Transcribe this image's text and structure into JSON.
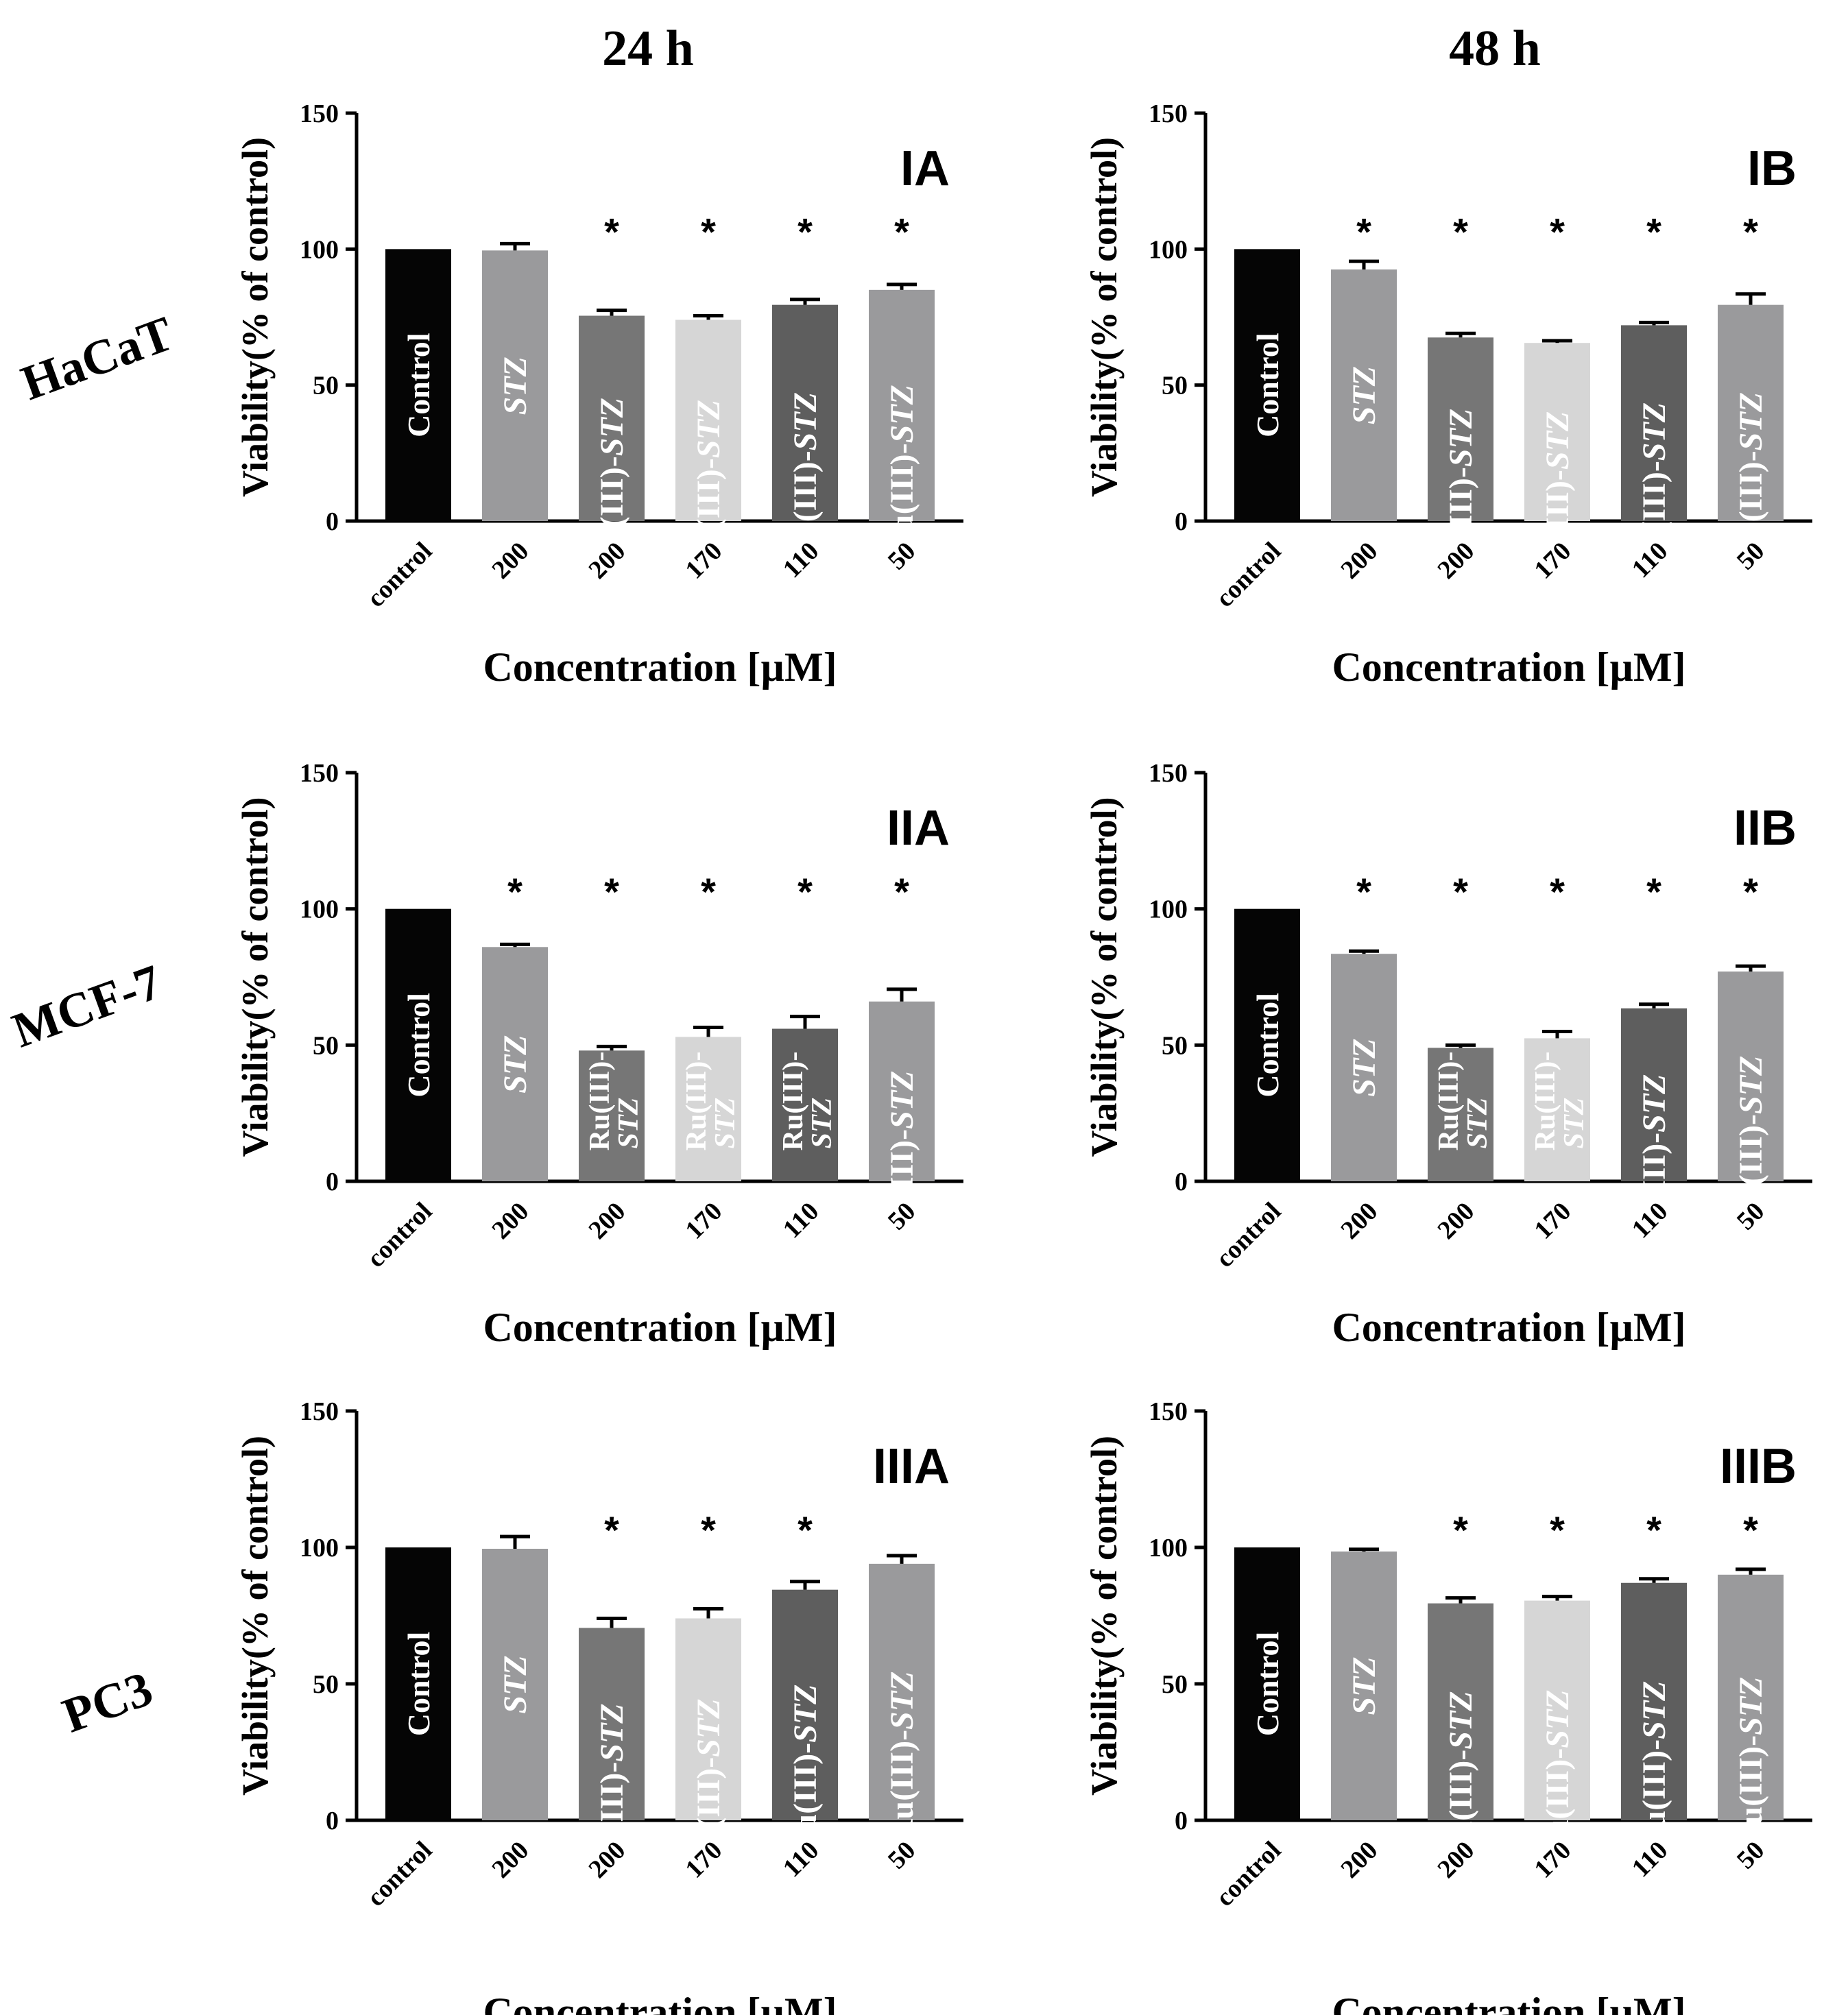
{
  "figure": {
    "column_titles": [
      "24 h",
      "48 h"
    ],
    "row_labels": [
      "HaCaT",
      "MCF-7",
      "PC3"
    ],
    "colors": {
      "axis": "#000000",
      "bar_fill": [
        "#050505",
        "#9a9a9c",
        "#767676",
        "#d6d6d6",
        "#5e5e5e",
        "#9a9a9c"
      ],
      "bar_label": "#ffffff",
      "errorbar": "#000000"
    }
  },
  "chart_data": [
    {
      "id": "IA",
      "type": "bar",
      "panel_label": "IA",
      "column": "24 h",
      "row": "HaCaT",
      "xlabel": "Concentration [µM]",
      "ylabel": "Viability(% of control)",
      "ylim": [
        0,
        150
      ],
      "yticks": [
        "0",
        "50",
        "100",
        "150"
      ],
      "categories": [
        "control",
        "200",
        "200",
        "170",
        "110",
        "50"
      ],
      "bar_labels": [
        "Control",
        "STZ",
        "Ru(III)-STZ",
        "Ru(III)-STZ",
        "Ru(III)-STZ",
        "Ru(III)-STZ"
      ],
      "values": [
        100,
        99.5,
        75.5,
        74,
        79.5,
        85
      ],
      "errors": [
        0,
        2.5,
        2,
        1.5,
        2,
        2
      ],
      "significance": [
        "",
        "",
        "*",
        "*",
        "*",
        "*"
      ]
    },
    {
      "id": "IB",
      "type": "bar",
      "panel_label": "IB",
      "column": "48 h",
      "row": "HaCaT",
      "xlabel": "Concentration [µM]",
      "ylabel": "Viability(% of control)",
      "ylim": [
        0,
        150
      ],
      "yticks": [
        "0",
        "50",
        "100",
        "150"
      ],
      "categories": [
        "control",
        "200",
        "200",
        "170",
        "110",
        "50"
      ],
      "bar_labels": [
        "Control",
        "STZ",
        "Ru(III)-STZ",
        "Ru(III)-STZ",
        "Ru(III)-STZ",
        "Ru(III)-STZ"
      ],
      "values": [
        100,
        92.5,
        67.5,
        65.5,
        72,
        79.5
      ],
      "errors": [
        0,
        3,
        1.5,
        0.8,
        1,
        4
      ],
      "significance": [
        "",
        "*",
        "*",
        "*",
        "*",
        "*"
      ]
    },
    {
      "id": "IIA",
      "type": "bar",
      "panel_label": "IIA",
      "column": "24 h",
      "row": "MCF-7",
      "xlabel": "Concentration [µM]",
      "ylabel": "Viability(% of control)",
      "ylim": [
        0,
        150
      ],
      "yticks": [
        "0",
        "50",
        "100",
        "150"
      ],
      "categories": [
        "control",
        "200",
        "200",
        "170",
        "110",
        "50"
      ],
      "bar_labels": [
        "Control",
        "STZ",
        "Ru(III)-|STZ",
        "Ru(III)-|STZ",
        "Ru(III)-|STZ",
        "Ru(III)-STZ"
      ],
      "values": [
        100,
        86,
        48,
        53,
        56,
        66
      ],
      "errors": [
        0,
        1,
        1.5,
        3.5,
        4.5,
        4.5
      ],
      "significance": [
        "",
        "*",
        "*",
        "*",
        "*",
        "*"
      ]
    },
    {
      "id": "IIB",
      "type": "bar",
      "panel_label": "IIB",
      "column": "48 h",
      "row": "MCF-7",
      "xlabel": "Concentration [µM]",
      "ylabel": "Viability(% of control)",
      "ylim": [
        0,
        150
      ],
      "yticks": [
        "0",
        "50",
        "100",
        "150"
      ],
      "categories": [
        "control",
        "200",
        "200",
        "170",
        "110",
        "50"
      ],
      "bar_labels": [
        "Control",
        "STZ",
        "Ru(III)-|STZ",
        "Ru(III)-|STZ",
        "Ru(III)-STZ",
        "Ru(III)-STZ"
      ],
      "values": [
        100,
        83.5,
        49,
        52.5,
        63.5,
        77
      ],
      "errors": [
        0,
        1,
        1,
        2.5,
        1.5,
        2
      ],
      "significance": [
        "",
        "*",
        "*",
        "*",
        "*",
        "*"
      ]
    },
    {
      "id": "IIIA",
      "type": "bar",
      "panel_label": "IIIA",
      "column": "24 h",
      "row": "PC3",
      "xlabel": "Concentration [µM]",
      "ylabel": "Viability(% of control)",
      "ylim": [
        0,
        150
      ],
      "yticks": [
        "0",
        "50",
        "100",
        "150"
      ],
      "categories": [
        "control",
        "200",
        "200",
        "170",
        "110",
        "50"
      ],
      "bar_labels": [
        "Control",
        "STZ",
        "Ru(III)-STZ",
        "Ru(III)-STZ",
        "Ru(III)-STZ",
        "Ru(III)-STZ"
      ],
      "values": [
        100,
        99.5,
        70.5,
        74,
        84.5,
        94
      ],
      "errors": [
        0,
        4.5,
        3.5,
        3.5,
        3,
        3
      ],
      "significance": [
        "",
        "",
        "*",
        "*",
        "*",
        ""
      ]
    },
    {
      "id": "IIIB",
      "type": "bar",
      "panel_label": "IIIB",
      "column": "48 h",
      "row": "PC3",
      "xlabel": "Concentration [µM]",
      "ylabel": "Viability(% of control)",
      "ylim": [
        0,
        150
      ],
      "yticks": [
        "0",
        "50",
        "100",
        "150"
      ],
      "categories": [
        "control",
        "200",
        "200",
        "170",
        "110",
        "50"
      ],
      "bar_labels": [
        "Control",
        "STZ",
        "Ru(III)-STZ",
        "Ru(III)-STZ",
        "Ru(III)-STZ",
        "Ru(III)-STZ"
      ],
      "values": [
        100,
        98.5,
        79.5,
        80.5,
        87,
        90
      ],
      "errors": [
        0,
        0.8,
        2,
        1.5,
        1.5,
        2
      ],
      "significance": [
        "",
        "",
        "*",
        "*",
        "*",
        "*"
      ]
    }
  ]
}
